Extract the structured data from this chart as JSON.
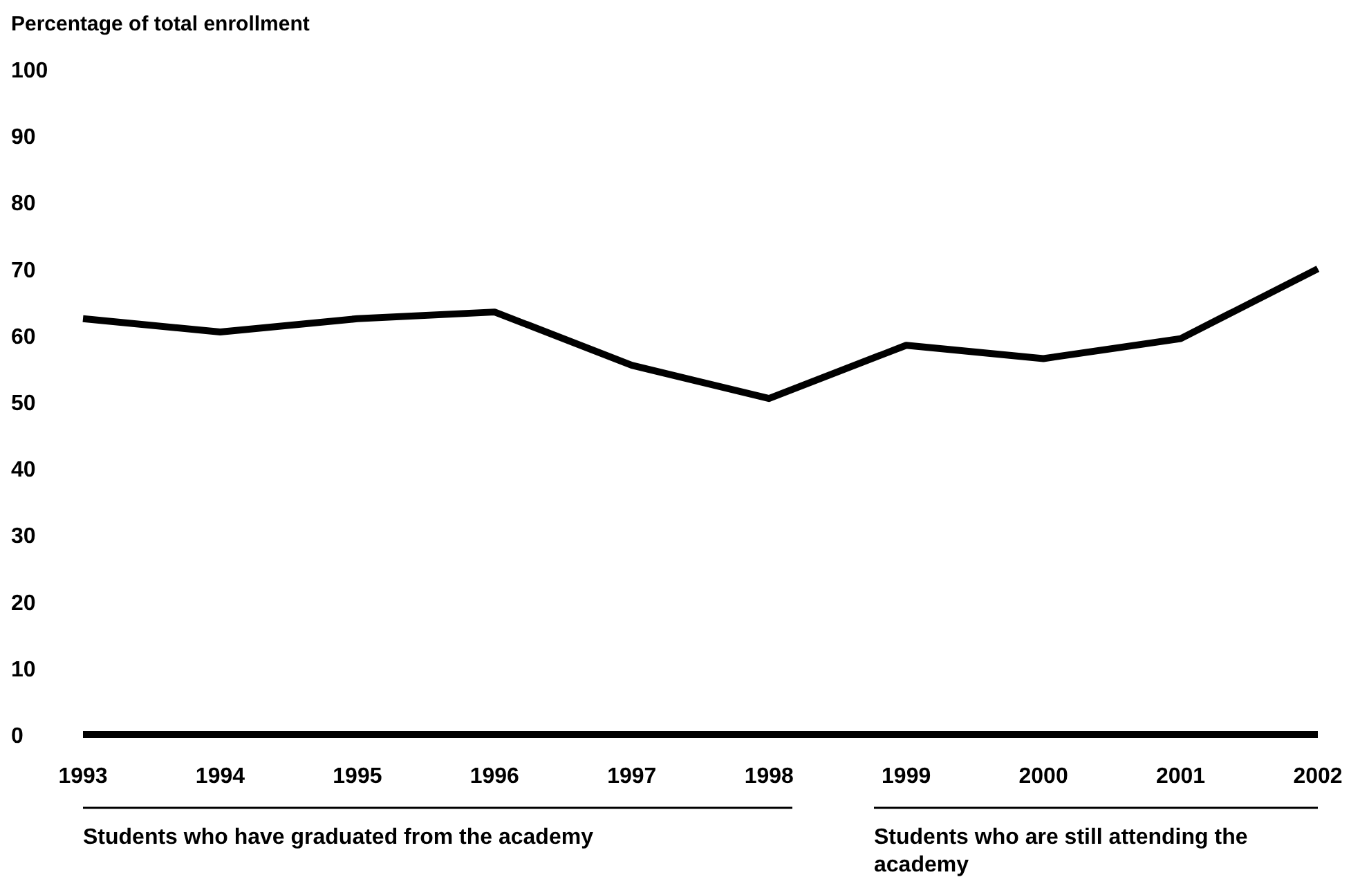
{
  "chart_data": {
    "type": "line",
    "ylabel": "Percentage of total enrollment",
    "x": [
      1993,
      1994,
      1995,
      1996,
      1997,
      1998,
      1999,
      2000,
      2001,
      2002
    ],
    "series": [
      {
        "color": "#000000",
        "values": [
          62.5,
          60.5,
          62.5,
          63.5,
          55.5,
          50.5,
          58.5,
          56.5,
          59.5,
          70
        ]
      }
    ],
    "xlim": [
      1993,
      2002
    ],
    "xticks": [
      1993,
      1994,
      1995,
      1996,
      1997,
      1998,
      1999,
      2000,
      2001,
      2002
    ],
    "ylim": [
      0,
      100
    ],
    "yticks": [
      0,
      10,
      20,
      30,
      40,
      50,
      60,
      70,
      80,
      90,
      100
    ],
    "grid": false,
    "marker": "none",
    "line_style": "solid",
    "annotations": [
      "Students who have graduated from the academy",
      "Students who are still attending the academy"
    ]
  }
}
